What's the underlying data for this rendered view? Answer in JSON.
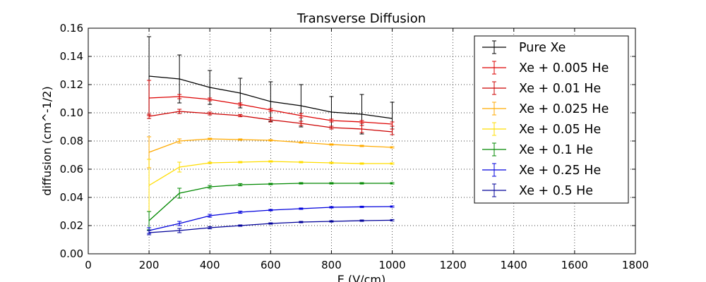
{
  "chart_data": {
    "type": "line",
    "title": "Transverse Diffusion",
    "xlabel": "E (V/cm)",
    "ylabel": "diffusion (cm^-1/2)",
    "xlim": [
      0,
      1800
    ],
    "ylim": [
      0,
      0.16
    ],
    "xticks": [
      "0",
      "200",
      "400",
      "600",
      "800",
      "1000",
      "1200",
      "1400",
      "1600",
      "1800"
    ],
    "yticks": [
      "0.00",
      "0.02",
      "0.04",
      "0.06",
      "0.08",
      "0.10",
      "0.12",
      "0.14",
      "0.16"
    ],
    "grid": true,
    "error_bars": true,
    "legend_position": "top-right",
    "x": [
      200,
      300,
      400,
      500,
      600,
      700,
      800,
      900,
      1000
    ],
    "series": [
      {
        "name": "Pure Xe",
        "color": "#000000",
        "values": [
          0.126,
          0.124,
          0.118,
          0.114,
          0.108,
          0.105,
          0.1005,
          0.099,
          0.096
        ],
        "errors": [
          0.028,
          0.017,
          0.012,
          0.0105,
          0.014,
          0.015,
          0.011,
          0.014,
          0.0115
        ]
      },
      {
        "name": "Xe + 0.005 He",
        "color": "#dd0000",
        "values": [
          0.1105,
          0.1115,
          0.1095,
          0.106,
          0.102,
          0.098,
          0.0945,
          0.0935,
          0.092
        ],
        "errors": [
          0.0125,
          0.0015,
          0.001,
          0.001,
          0.001,
          0.0015,
          0.001,
          0.001,
          0.0015
        ]
      },
      {
        "name": "Xe + 0.01 He",
        "color": "#cc0000",
        "values": [
          0.0975,
          0.101,
          0.0995,
          0.098,
          0.095,
          0.0925,
          0.0895,
          0.0885,
          0.0865
        ],
        "errors": [
          0.0015,
          0.0015,
          0.001,
          0.0008,
          0.0015,
          0.0015,
          0.001,
          0.0025,
          0.002
        ]
      },
      {
        "name": "Xe + 0.025 He",
        "color": "#ffaa00",
        "values": [
          0.072,
          0.08,
          0.0815,
          0.081,
          0.0805,
          0.079,
          0.0775,
          0.0765,
          0.0755
        ],
        "errors": [
          0.011,
          0.0015,
          0.0005,
          0.0005,
          0.0005,
          0.0005,
          0.0005,
          0.0005,
          0.0005
        ]
      },
      {
        "name": "Xe + 0.05 He",
        "color": "#ffdd00",
        "values": [
          0.0485,
          0.0615,
          0.0645,
          0.065,
          0.0655,
          0.065,
          0.0645,
          0.064,
          0.064
        ],
        "errors": [
          0.0185,
          0.0035,
          0.0005,
          0.0005,
          0.0005,
          0.0005,
          0.0005,
          0.0005,
          0.0005
        ]
      },
      {
        "name": "Xe + 0.1 He",
        "color": "#008800",
        "values": [
          0.0235,
          0.043,
          0.0475,
          0.049,
          0.0495,
          0.05,
          0.05,
          0.05,
          0.05
        ],
        "errors": [
          0.0065,
          0.0035,
          0.001,
          0.0008,
          0.0005,
          0.0005,
          0.0005,
          0.0005,
          0.0005
        ]
      },
      {
        "name": "Xe + 0.25 He",
        "color": "#0000dd",
        "values": [
          0.0165,
          0.0215,
          0.027,
          0.0295,
          0.031,
          0.032,
          0.033,
          0.0333,
          0.0335
        ],
        "errors": [
          0.002,
          0.0015,
          0.001,
          0.0008,
          0.0005,
          0.0005,
          0.0005,
          0.0005,
          0.0005
        ]
      },
      {
        "name": "Xe + 0.5 He",
        "color": "#000099",
        "values": [
          0.015,
          0.0165,
          0.0185,
          0.02,
          0.0215,
          0.0225,
          0.023,
          0.0235,
          0.0238
        ],
        "errors": [
          0.0015,
          0.0015,
          0.0008,
          0.0005,
          0.0005,
          0.0005,
          0.0005,
          0.0005,
          0.0005
        ]
      }
    ]
  }
}
